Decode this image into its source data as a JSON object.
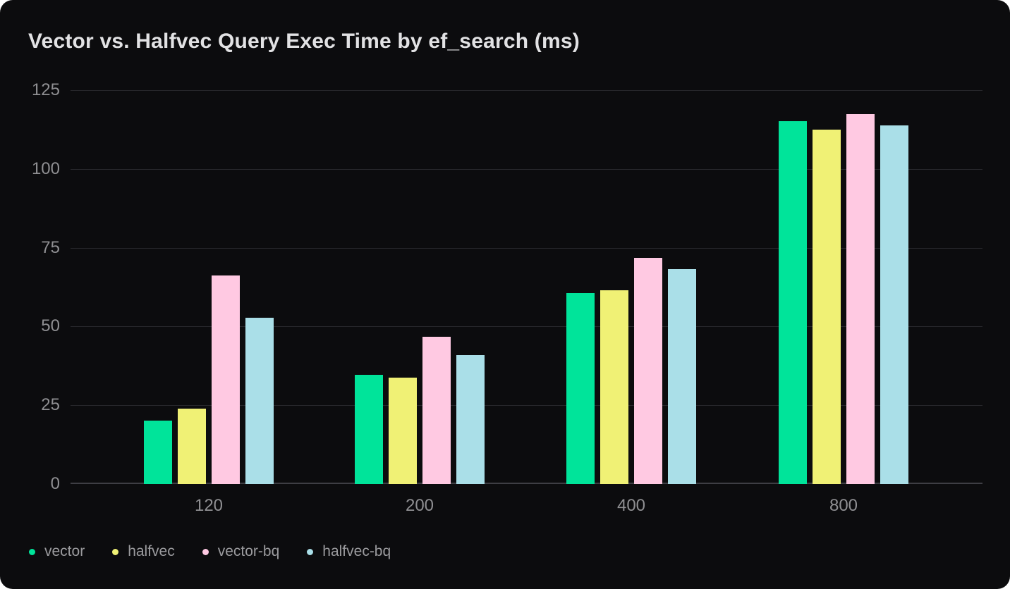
{
  "title": "Vector vs. Halfvec Query Exec Time by ef_search (ms)",
  "colors": {
    "card_background": "#0c0c0e",
    "page_background": "#ffffff",
    "title_text": "#e2e2e4",
    "axis_text": "#8f8f92",
    "legend_text": "#9b9b9e",
    "gridline": "#27272b",
    "zero_line": "#3e3e44"
  },
  "chart_data": {
    "type": "bar",
    "title": "Vector vs. Halfvec Query Exec Time by ef_search (ms)",
    "xlabel": "",
    "ylabel": "",
    "ylim": [
      0,
      125
    ],
    "yticks": [
      0,
      25,
      50,
      75,
      100,
      125
    ],
    "grid": true,
    "legend_position": "bottom-left",
    "categories": [
      "120",
      "200",
      "400",
      "800"
    ],
    "series": [
      {
        "name": "vector",
        "color": "#00e49a",
        "values": [
          20.2,
          34.7,
          60.6,
          115.2
        ]
      },
      {
        "name": "halfvec",
        "color": "#f0f175",
        "values": [
          23.9,
          33.7,
          61.5,
          112.6
        ]
      },
      {
        "name": "vector-bq",
        "color": "#ffc9e2",
        "values": [
          66.1,
          46.8,
          71.9,
          117.4
        ]
      },
      {
        "name": "halfvec-bq",
        "color": "#aadfe8",
        "values": [
          52.7,
          40.9,
          68.3,
          113.9
        ]
      }
    ]
  }
}
